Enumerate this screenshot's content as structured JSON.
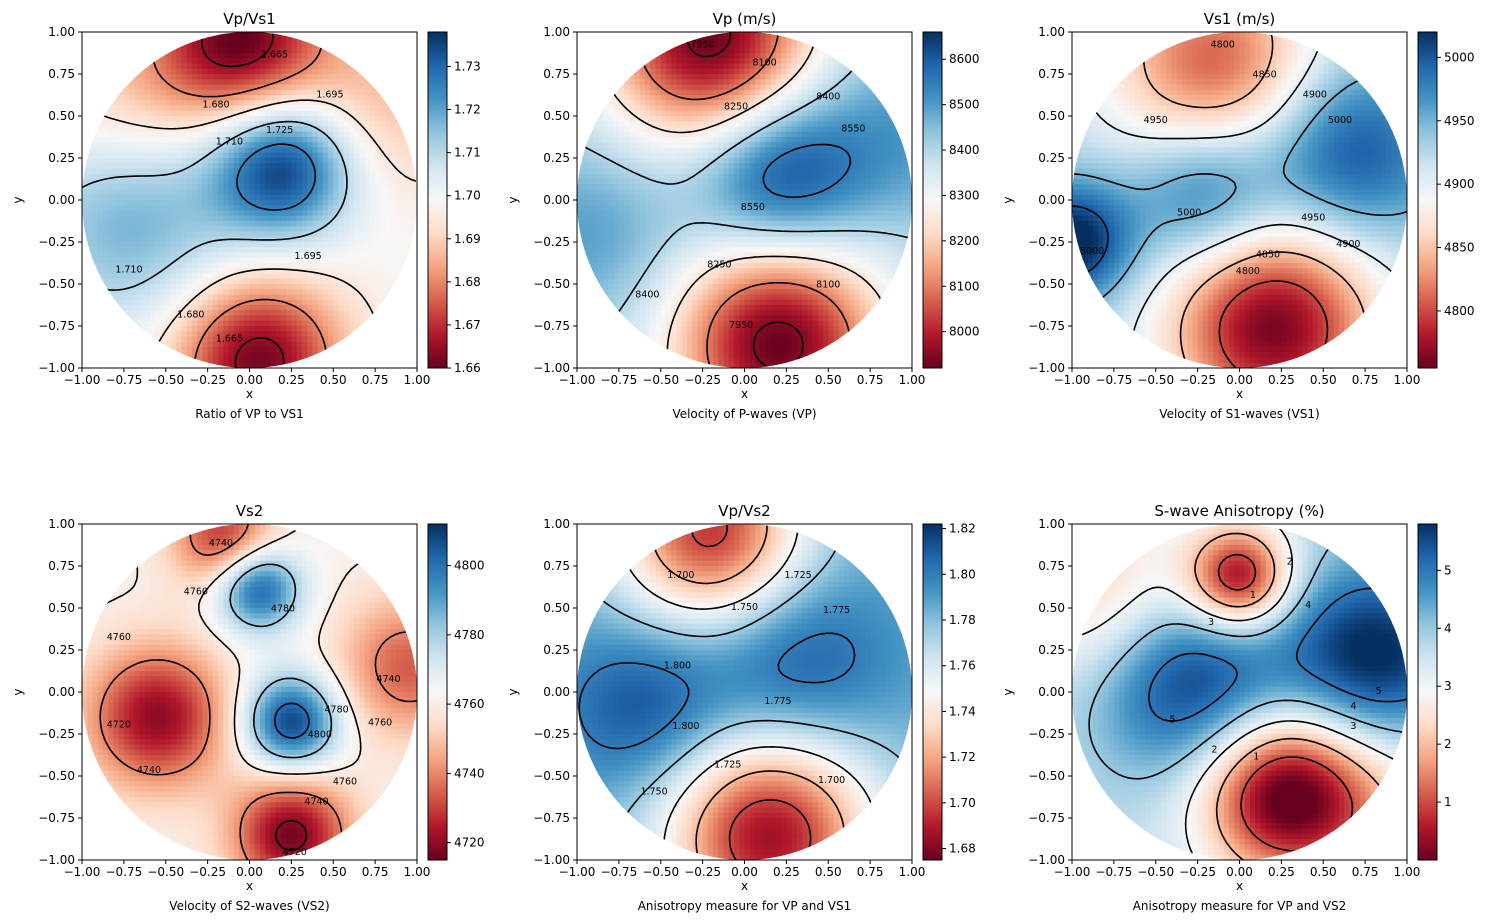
{
  "chart_data": [
    {
      "type": "heatmap",
      "title": "Vp/Vs1",
      "xlabel": "x",
      "ylabel": "y",
      "caption": "Ratio of VP to VS1",
      "xlim": [
        -1,
        1
      ],
      "ylim": [
        -1,
        1
      ],
      "x_ticks": [
        "−1.00",
        "−0.75",
        "−0.50",
        "−0.25",
        "0.00",
        "0.25",
        "0.50",
        "0.75",
        "1.00"
      ],
      "y_ticks": [
        "1.00",
        "0.75",
        "0.50",
        "0.25",
        "0.00",
        "−0.25",
        "−0.50",
        "−0.75",
        "−1.00"
      ],
      "colormap": "RdBu",
      "colorbar": {
        "range": [
          1.66,
          1.738
        ],
        "ticks": [
          1.66,
          1.67,
          1.68,
          1.69,
          1.7,
          1.71,
          1.72,
          1.73
        ],
        "tick_labels": [
          "1.66",
          "1.67",
          "1.68",
          "1.69",
          "1.70",
          "1.71",
          "1.72",
          "1.73"
        ]
      },
      "contour_levels": [
        1.665,
        1.68,
        1.695,
        1.71,
        1.725
      ],
      "contour_labels": [
        "1.665",
        "1.680",
        "1.695",
        "1.710",
        "1.725",
        "1.710",
        "1.695",
        "1.680",
        "1.665"
      ],
      "field": {
        "base": 1.699,
        "blobs": [
          [
            -0.05,
            0.95,
            -0.038,
            0.35
          ],
          [
            0.05,
            -0.95,
            -0.038,
            0.35
          ],
          [
            0.2,
            0.2,
            0.038,
            0.3
          ],
          [
            -0.7,
            -0.1,
            0.02,
            0.45
          ],
          [
            0.8,
            0.6,
            -0.012,
            0.4
          ],
          [
            -0.7,
            0.6,
            -0.012,
            0.4
          ]
        ]
      },
      "contour_label_positions": [
        [
          0.15,
          0.87
        ],
        [
          -0.2,
          0.57
        ],
        [
          0.48,
          0.63
        ],
        [
          -0.12,
          0.35
        ],
        [
          0.18,
          0.42
        ],
        [
          -0.72,
          -0.41
        ],
        [
          0.35,
          -0.33
        ],
        [
          -0.35,
          -0.68
        ],
        [
          -0.12,
          -0.82
        ]
      ]
    },
    {
      "type": "heatmap",
      "title": "Vp (m/s)",
      "xlabel": "x",
      "ylabel": "y",
      "caption": "Velocity of P-waves (VP)",
      "xlim": [
        -1,
        1
      ],
      "ylim": [
        -1,
        1
      ],
      "x_ticks": [
        "−1.00",
        "−0.75",
        "−0.50",
        "−0.25",
        "0.00",
        "0.25",
        "0.50",
        "0.75",
        "1.00"
      ],
      "y_ticks": [
        "1.00",
        "0.75",
        "0.50",
        "0.25",
        "0.00",
        "−0.25",
        "−0.50",
        "−0.75",
        "−1.00"
      ],
      "colormap": "RdBu",
      "colorbar": {
        "range": [
          7920,
          8660
        ],
        "ticks": [
          8000,
          8100,
          8200,
          8300,
          8400,
          8500,
          8600
        ],
        "tick_labels": [
          "8000",
          "8100",
          "8200",
          "8300",
          "8400",
          "8500",
          "8600"
        ]
      },
      "contour_levels": [
        7950,
        8100,
        8250,
        8400,
        8550
      ],
      "contour_labels": [
        "7950",
        "8100",
        "8250",
        "8400",
        "8550",
        "8550",
        "8400",
        "8250",
        "8100",
        "7950"
      ],
      "field": {
        "base": 8400,
        "blobs": [
          [
            0.2,
            0.15,
            260,
            0.35
          ],
          [
            -0.2,
            0.95,
            -480,
            0.45
          ],
          [
            0.2,
            -0.85,
            -480,
            0.45
          ],
          [
            -0.9,
            -0.2,
            100,
            0.4
          ],
          [
            0.9,
            0.4,
            100,
            0.4
          ]
        ]
      },
      "contour_label_positions": [
        [
          -0.25,
          0.93
        ],
        [
          0.12,
          0.82
        ],
        [
          -0.05,
          0.56
        ],
        [
          0.5,
          0.62
        ],
        [
          0.65,
          0.43
        ],
        [
          0.05,
          -0.04
        ],
        [
          -0.58,
          -0.56
        ],
        [
          -0.15,
          -0.38
        ],
        [
          0.5,
          -0.5
        ],
        [
          -0.02,
          -0.74
        ]
      ]
    },
    {
      "type": "heatmap",
      "title": "Vs1 (m/s)",
      "xlabel": "x",
      "ylabel": "y",
      "caption": "Velocity of S1-waves (VS1)",
      "xlim": [
        -1,
        1
      ],
      "ylim": [
        -1,
        1
      ],
      "x_ticks": [
        "−1.00",
        "−0.75",
        "−0.50",
        "−0.25",
        "0.00",
        "0.25",
        "0.50",
        "0.75",
        "1.00"
      ],
      "y_ticks": [
        "1.00",
        "0.75",
        "0.50",
        "0.25",
        "0.00",
        "−0.25",
        "−0.50",
        "−0.75",
        "−1.00"
      ],
      "colormap": "RdBu",
      "colorbar": {
        "range": [
          4755,
          5020
        ],
        "ticks": [
          4800,
          4850,
          4900,
          4950,
          5000
        ],
        "tick_labels": [
          "4800",
          "4850",
          "4900",
          "4950",
          "5000"
        ]
      },
      "contour_levels": [
        4800,
        4850,
        4900,
        4950,
        5000
      ],
      "contour_labels": [
        "4800",
        "4850",
        "4900",
        "4950",
        "5000",
        "5000",
        "4950",
        "4900",
        "4850",
        "4800",
        "5000"
      ],
      "field": {
        "base": 4925,
        "blobs": [
          [
            -0.15,
            0.8,
            -120,
            0.45
          ],
          [
            0.2,
            -0.75,
            -165,
            0.45
          ],
          [
            0.65,
            0.28,
            85,
            0.38
          ],
          [
            -0.2,
            0.05,
            80,
            0.32
          ],
          [
            -1.0,
            -0.25,
            110,
            0.25
          ]
        ]
      },
      "contour_label_positions": [
        [
          -0.1,
          0.93
        ],
        [
          0.15,
          0.75
        ],
        [
          0.45,
          0.63
        ],
        [
          -0.5,
          0.48
        ],
        [
          0.6,
          0.48
        ],
        [
          -0.3,
          -0.07
        ],
        [
          0.44,
          -0.1
        ],
        [
          0.65,
          -0.26
        ],
        [
          0.17,
          -0.32
        ],
        [
          0.05,
          -0.42
        ],
        [
          -0.88,
          -0.3
        ]
      ]
    },
    {
      "type": "heatmap",
      "title": "Vs2",
      "xlabel": "x",
      "ylabel": "y",
      "caption": "Velocity of S2-waves (VS2)",
      "xlim": [
        -1,
        1
      ],
      "ylim": [
        -1,
        1
      ],
      "x_ticks": [
        "−1.00",
        "−0.75",
        "−0.50",
        "−0.25",
        "0.00",
        "0.25",
        "0.50",
        "0.75",
        "1.00"
      ],
      "y_ticks": [
        "1.00",
        "0.75",
        "0.50",
        "0.25",
        "0.00",
        "−0.25",
        "−0.50",
        "−0.75",
        "−1.00"
      ],
      "colormap": "RdBu",
      "colorbar": {
        "range": [
          4715,
          4812
        ],
        "ticks": [
          4720,
          4740,
          4760,
          4780,
          4800
        ],
        "tick_labels": [
          "4720",
          "4740",
          "4760",
          "4780",
          "4800"
        ]
      },
      "contour_levels": [
        4720,
        4740,
        4760,
        4780,
        4800
      ],
      "contour_labels": [
        "4740",
        "4760",
        "4780",
        "4760",
        "4740",
        "4760",
        "4720",
        "4740",
        "4780",
        "4800",
        "4760",
        "4740",
        "4720"
      ],
      "field": {
        "base": 4762,
        "blobs": [
          [
            0.05,
            0.62,
            45,
            0.18
          ],
          [
            0.25,
            -0.18,
            48,
            0.2
          ],
          [
            -0.55,
            -0.15,
            -42,
            0.3
          ],
          [
            0.25,
            -0.85,
            -45,
            0.25
          ],
          [
            -0.15,
            0.92,
            -35,
            0.22
          ],
          [
            0.95,
            0.15,
            -28,
            0.3
          ]
        ]
      },
      "contour_label_positions": [
        [
          -0.17,
          0.89
        ],
        [
          -0.32,
          0.6
        ],
        [
          0.2,
          0.5
        ],
        [
          -0.78,
          0.33
        ],
        [
          0.83,
          0.08
        ],
        [
          0.78,
          -0.18
        ],
        [
          -0.78,
          -0.19
        ],
        [
          -0.6,
          -0.46
        ],
        [
          0.52,
          -0.1
        ],
        [
          0.42,
          -0.25
        ],
        [
          0.57,
          -0.53
        ],
        [
          0.4,
          -0.65
        ],
        [
          0.27,
          -0.95
        ]
      ]
    },
    {
      "type": "heatmap",
      "title": "Vp/Vs2",
      "xlabel": "x",
      "ylabel": "y",
      "caption": "Anisotropy measure for VP and VS1",
      "xlim": [
        -1,
        1
      ],
      "ylim": [
        -1,
        1
      ],
      "x_ticks": [
        "−1.00",
        "−0.75",
        "−0.50",
        "−0.25",
        "0.00",
        "0.25",
        "0.50",
        "0.75",
        "1.00"
      ],
      "y_ticks": [
        "1.00",
        "0.75",
        "0.50",
        "0.25",
        "0.00",
        "−0.25",
        "−0.50",
        "−0.75",
        "−1.00"
      ],
      "colormap": "RdBu",
      "colorbar": {
        "range": [
          1.675,
          1.822
        ],
        "ticks": [
          1.68,
          1.7,
          1.72,
          1.74,
          1.76,
          1.78,
          1.8,
          1.82
        ],
        "tick_labels": [
          "1.68",
          "1.70",
          "1.72",
          "1.74",
          "1.76",
          "1.78",
          "1.80",
          "1.82"
        ]
      },
      "contour_levels": [
        1.7,
        1.725,
        1.75,
        1.775,
        1.8
      ],
      "contour_labels": [
        "1.700",
        "1.725",
        "1.750",
        "1.775",
        "1.800",
        "1.800",
        "1.775",
        "1.725",
        "1.700",
        "1.750"
      ],
      "field": {
        "base": 1.785,
        "blobs": [
          [
            -0.2,
            0.95,
            -0.09,
            0.4
          ],
          [
            0.15,
            -0.85,
            -0.1,
            0.45
          ],
          [
            0.3,
            0.15,
            0.03,
            0.4
          ],
          [
            -0.6,
            -0.1,
            0.03,
            0.35
          ]
        ]
      },
      "contour_label_positions": [
        [
          -0.38,
          0.7
        ],
        [
          0.32,
          0.7
        ],
        [
          0.0,
          0.51
        ],
        [
          0.55,
          0.49
        ],
        [
          -0.4,
          0.16
        ],
        [
          -0.35,
          -0.2
        ],
        [
          0.2,
          -0.05
        ],
        [
          -0.1,
          -0.43
        ],
        [
          0.52,
          -0.52
        ],
        [
          -0.54,
          -0.59
        ]
      ]
    },
    {
      "type": "heatmap",
      "title": "S-wave Anisotropy (%)",
      "xlabel": "x",
      "ylabel": "y",
      "caption": "Anisotropy measure for VP and VS2",
      "xlim": [
        -1,
        1
      ],
      "ylim": [
        -1,
        1
      ],
      "x_ticks": [
        "−1.00",
        "−0.75",
        "−0.50",
        "−0.25",
        "0.00",
        "0.25",
        "0.50",
        "0.75",
        "1.00"
      ],
      "y_ticks": [
        "1.00",
        "0.75",
        "0.50",
        "0.25",
        "0.00",
        "−0.25",
        "−0.50",
        "−0.75",
        "−1.00"
      ],
      "colormap": "RdBu",
      "colorbar": {
        "range": [
          0.0,
          5.8
        ],
        "ticks": [
          1,
          2,
          3,
          4,
          5
        ],
        "tick_labels": [
          "1",
          "2",
          "3",
          "4",
          "5"
        ]
      },
      "contour_levels": [
        1,
        2,
        3,
        4,
        5
      ],
      "contour_labels": [
        "1",
        "2",
        "3",
        "4",
        "5",
        "5",
        "4",
        "3",
        "2",
        "1"
      ],
      "field": {
        "base": 3.6,
        "blobs": [
          [
            0.0,
            0.68,
            -3.4,
            0.22
          ],
          [
            0.25,
            -0.6,
            -3.6,
            0.35
          ],
          [
            -0.3,
            0.05,
            2.2,
            0.4
          ],
          [
            0.8,
            0.2,
            2.4,
            0.4
          ],
          [
            -0.8,
            0.6,
            -1.4,
            0.4
          ],
          [
            0.8,
            -0.7,
            -1.2,
            0.4
          ]
        ]
      },
      "contour_label_positions": [
        [
          0.08,
          0.58
        ],
        [
          0.3,
          0.78
        ],
        [
          -0.17,
          0.42
        ],
        [
          0.41,
          0.52
        ],
        [
          -0.4,
          -0.16
        ],
        [
          0.83,
          0.01
        ],
        [
          0.68,
          -0.08
        ],
        [
          0.68,
          -0.2
        ],
        [
          -0.15,
          -0.34
        ],
        [
          0.1,
          -0.38
        ]
      ]
    }
  ]
}
